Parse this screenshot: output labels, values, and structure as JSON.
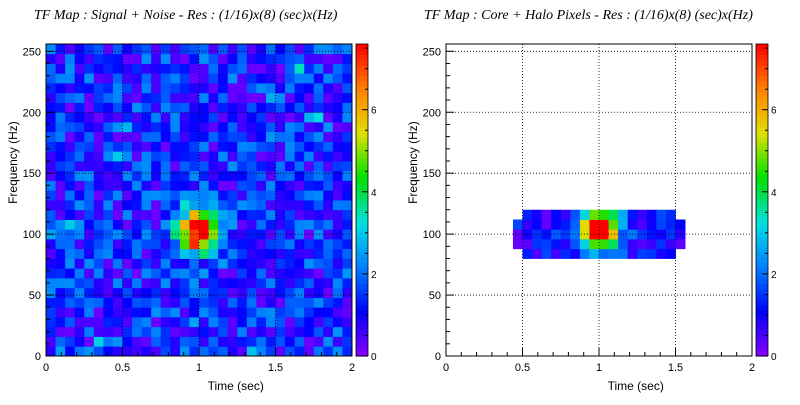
{
  "chart_data": [
    {
      "type": "heatmap",
      "title": "TF Map : Signal + Noise - Res : (1/16)x(8) (sec)x(Hz)",
      "xlabel": "Time (sec)",
      "ylabel": "Frequency (Hz)",
      "xlim": [
        0,
        2
      ],
      "ylim": [
        0,
        256
      ],
      "zlim": [
        0,
        7.6
      ],
      "xticks": [
        "0",
        "0.5",
        "1",
        "1.5",
        "2"
      ],
      "yticks": [
        "0",
        "50",
        "100",
        "150",
        "200",
        "250"
      ],
      "zticks": [
        "0",
        "2",
        "4",
        "6"
      ],
      "grid": true,
      "bin_width_sec": 0.0625,
      "bin_height_hz": 8,
      "peak": {
        "time": 1.0,
        "frequency": 104,
        "value": 7.5
      },
      "background": "random noise 0.2–2.5 across full map",
      "colorscale": [
        "#8800ff",
        "#0000ff",
        "#0080ff",
        "#00e0e0",
        "#00e000",
        "#e0e000",
        "#ff8000",
        "#ff0000"
      ]
    },
    {
      "type": "heatmap",
      "title": "TF Map : Core + Halo Pixels - Res : (1/16)x(8) (sec)x(Hz)",
      "xlabel": "Time (sec)",
      "ylabel": "Frequency (Hz)",
      "xlim": [
        0,
        2
      ],
      "ylim": [
        0,
        256
      ],
      "zlim": [
        0,
        7.6
      ],
      "xticks": [
        "0",
        "0.5",
        "1",
        "1.5",
        "2"
      ],
      "yticks": [
        "0",
        "50",
        "100",
        "150",
        "200",
        "250"
      ],
      "zticks": [
        "0",
        "2",
        "4",
        "6"
      ],
      "grid": true,
      "bin_width_sec": 0.0625,
      "bin_height_hz": 8,
      "peak": {
        "time": 1.0,
        "frequency": 104,
        "value": 7.5
      },
      "region": {
        "time": [
          0.5,
          1.5
        ],
        "frequency": [
          80,
          120
        ]
      },
      "colorscale": [
        "#8800ff",
        "#0000ff",
        "#0080ff",
        "#00e0e0",
        "#00e000",
        "#e0e000",
        "#ff8000",
        "#ff0000"
      ]
    }
  ]
}
